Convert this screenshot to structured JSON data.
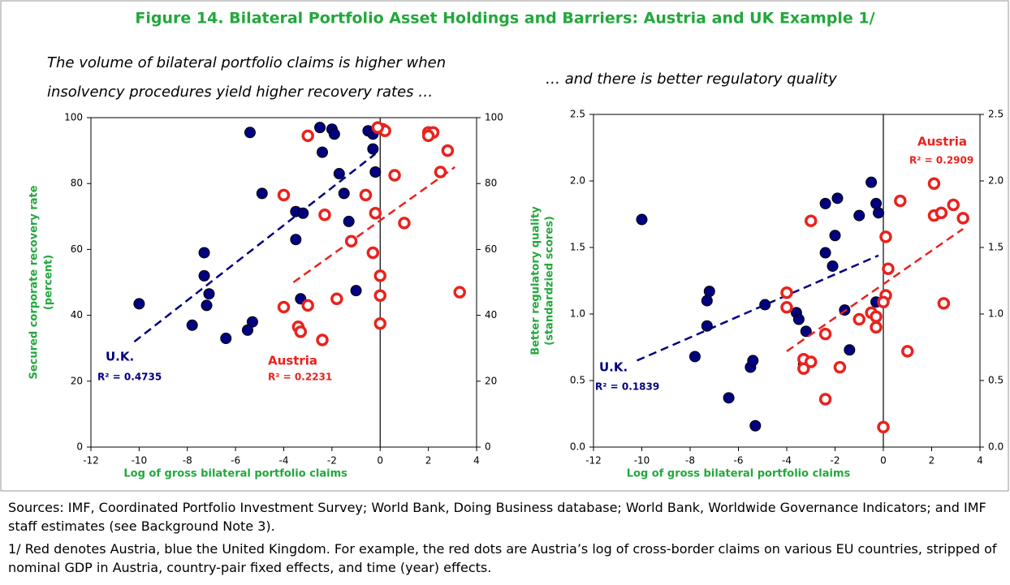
{
  "title": "Figure 14. Bilateral Portfolio Asset Holdings and Barriers: Austria and UK Example 1/",
  "chart_data": [
    {
      "type": "scatter",
      "subtitle": [
        "The volume of bilateral portfolio claims is higher when",
        "insolvency procedures yield higher recovery rates …"
      ],
      "xlabel": "Log of gross bilateral portfolio claims",
      "ylabel": [
        "Secured corporate recovery rate",
        "(percent)"
      ],
      "xlim": [
        -12,
        4
      ],
      "xticks": [
        -12,
        -10,
        -8,
        -6,
        -4,
        -2,
        0,
        2,
        4
      ],
      "ylim": [
        0,
        100
      ],
      "yticks": [
        0,
        20,
        40,
        60,
        80,
        100
      ],
      "y2lim": [
        0,
        100
      ],
      "y2ticks": [
        0,
        20,
        40,
        60,
        80,
        100
      ],
      "series": [
        {
          "name": "U.K.",
          "color": "#000080",
          "label": "R² = 0.4735",
          "x": [
            -5.4,
            -2.5,
            -2.0,
            -1.9,
            -0.5,
            -0.3,
            -2.4,
            -0.3,
            -1.7,
            -0.2,
            -4.9,
            -1.5,
            -3.5,
            -3.2,
            -1.3,
            -3.5,
            -7.3,
            -7.3,
            -7.1,
            -7.2,
            -10.0,
            -3.3,
            -1.0,
            -7.8,
            -5.3,
            -5.5,
            -6.4
          ],
          "values": [
            95.5,
            97,
            96.5,
            95,
            96,
            95,
            89.5,
            90.5,
            83,
            83.5,
            77,
            77,
            71.5,
            71,
            68.5,
            63,
            59,
            52,
            46.5,
            43,
            43.5,
            45,
            47.5,
            37,
            38,
            35.5,
            33
          ],
          "fit": {
            "x": [
              -10.2,
              -0.2
            ],
            "y": [
              32,
              89
            ]
          }
        },
        {
          "name": "Austria",
          "color": "#e8231e",
          "label": "R² = 0.2231",
          "x": [
            0.1,
            0.2,
            -0.1,
            -3.0,
            2.0,
            2.2,
            2.0,
            2.8,
            2.5,
            0.6,
            -4.0,
            -0.6,
            -2.3,
            -0.2,
            1.0,
            -1.2,
            -0.3,
            0.0,
            0.0,
            3.3,
            -1.8,
            -3.0,
            -4.0,
            -3.4,
            -3.3,
            -2.4,
            0.0
          ],
          "values": [
            96.5,
            96,
            97,
            94.5,
            95.5,
            95.5,
            94.5,
            90,
            83.5,
            82.5,
            76.5,
            76.5,
            70.5,
            71,
            68,
            62.5,
            59,
            52,
            46,
            47,
            45,
            43,
            42.5,
            36.5,
            35,
            32.5,
            37.5
          ],
          "fit": {
            "x": [
              -3.6,
              3.1
            ],
            "y": [
              50,
              85
            ]
          }
        }
      ]
    },
    {
      "type": "scatter",
      "subtitle": [
        "… and there is better regulatory quality"
      ],
      "xlabel": "Log of gross bilateral portfolio claims",
      "ylabel": [
        "Better regulatory quality",
        "(standardzied  scores)"
      ],
      "xlim": [
        -12,
        4
      ],
      "xticks": [
        -12,
        -10,
        -8,
        -6,
        -4,
        -2,
        0,
        2,
        4
      ],
      "ylim": [
        0,
        2.5
      ],
      "yticks": [
        {
          "value": 0,
          "label": "0.0"
        },
        0.5,
        {
          "value": 1,
          "label": "1.0"
        },
        1.5,
        {
          "value": 2,
          "label": "2.0"
        },
        2.5
      ],
      "y2lim": [
        0,
        2.5
      ],
      "y2ticks": [
        {
          "value": 0,
          "label": "0.0"
        },
        0.5,
        {
          "value": 1,
          "label": "1.0"
        },
        1.5,
        {
          "value": 2,
          "label": "2.0"
        },
        2.5
      ],
      "series": [
        {
          "name": "U.K.",
          "color": "#000080",
          "label": "R² = 0.1839",
          "x": [
            -10,
            -0.5,
            -0.3,
            -0.2,
            -2.4,
            -1.9,
            -1.0,
            -2.0,
            -2.4,
            -2.1,
            -7.2,
            -7.3,
            -4.9,
            -7.3,
            -3.6,
            -3.5,
            -1.6,
            -3.2,
            -0.3,
            -7.8,
            -5.5,
            -5.4,
            -3.3,
            -1.4,
            -6.4,
            -5.3
          ],
          "values": [
            1.71,
            1.99,
            1.83,
            1.76,
            1.83,
            1.87,
            1.74,
            1.59,
            1.46,
            1.36,
            1.17,
            1.1,
            1.07,
            0.91,
            1.01,
            0.96,
            1.03,
            0.87,
            1.09,
            0.68,
            0.6,
            0.65,
            0.62,
            0.73,
            0.37,
            0.16
          ],
          "fit": {
            "x": [
              -10.2,
              -0.2
            ],
            "y": [
              0.65,
              1.44
            ]
          }
        },
        {
          "name": "Austria",
          "color": "#e8231e",
          "label": "R² = 0.2909",
          "x": [
            2.1,
            0.7,
            2.9,
            2.1,
            2.4,
            3.3,
            -3.0,
            0.1,
            0.2,
            -4.0,
            0.1,
            -4.0,
            0.0,
            -0.5,
            -0.3,
            -0.3,
            -1.0,
            2.5,
            -2.4,
            1.0,
            -3.3,
            -3.0,
            -3.3,
            -1.8,
            -2.4,
            0.0
          ],
          "values": [
            1.98,
            1.85,
            1.82,
            1.74,
            1.76,
            1.72,
            1.7,
            1.58,
            1.34,
            1.16,
            1.14,
            1.05,
            1.09,
            1.01,
            0.98,
            0.9,
            0.96,
            1.08,
            0.85,
            0.72,
            0.66,
            0.64,
            0.59,
            0.6,
            0.36,
            0.15
          ],
          "fit": {
            "x": [
              -4.0,
              3.3
            ],
            "y": [
              0.72,
              1.64
            ]
          }
        }
      ]
    }
  ],
  "notes": [
    "Sources: IMF, Coordinated Portfolio Investment Survey; World Bank, Doing Business database; World Bank, Worldwide Governance Indicators; and IMF staff estimates (see Background Note 3).",
    "1/ Red denotes Austria, blue the United Kingdom. For example, the red dots are Austria’s log of cross-border claims on various EU countries, stripped of nominal GDP in Austria, country-pair fixed effects, and time (year) effects."
  ]
}
